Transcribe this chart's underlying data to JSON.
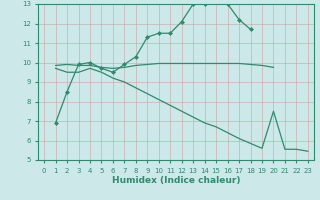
{
  "xlabel": "Humidex (Indice chaleur)",
  "xlim": [
    -0.5,
    23.5
  ],
  "ylim": [
    5,
    13
  ],
  "yticks": [
    5,
    6,
    7,
    8,
    9,
    10,
    11,
    12,
    13
  ],
  "xticks": [
    0,
    1,
    2,
    3,
    4,
    5,
    6,
    7,
    8,
    9,
    10,
    11,
    12,
    13,
    14,
    15,
    16,
    17,
    18,
    19,
    20,
    21,
    22,
    23
  ],
  "line_color": "#2e8b6e",
  "bg_color": "#cce8e8",
  "grid_color": "#b0d4d4",
  "line1_x": [
    1,
    2,
    3,
    4,
    5,
    6,
    7,
    8,
    9,
    10,
    11,
    12,
    13,
    14,
    15,
    16,
    17,
    18
  ],
  "line1_y": [
    6.9,
    8.5,
    9.9,
    10.0,
    9.7,
    9.5,
    9.9,
    10.3,
    11.3,
    11.5,
    11.5,
    12.1,
    13.0,
    13.0,
    13.3,
    13.0,
    12.2,
    11.7
  ],
  "line2_x": [
    1,
    2,
    3,
    4,
    5,
    6,
    7,
    8,
    9,
    10,
    11,
    12,
    13,
    14,
    15,
    16,
    17,
    18,
    19,
    20
  ],
  "line2_y": [
    9.85,
    9.9,
    9.85,
    9.85,
    9.75,
    9.7,
    9.75,
    9.85,
    9.9,
    9.95,
    9.95,
    9.95,
    9.95,
    9.95,
    9.95,
    9.95,
    9.95,
    9.9,
    9.85,
    9.75
  ],
  "line3_x": [
    1,
    2,
    3,
    4,
    5,
    6,
    7,
    8,
    9,
    10,
    11,
    12,
    13,
    14,
    15,
    16,
    17,
    18,
    19,
    20,
    21,
    22,
    23
  ],
  "line3_y": [
    9.7,
    9.5,
    9.5,
    9.7,
    9.5,
    9.2,
    9.0,
    8.7,
    8.4,
    8.1,
    7.8,
    7.5,
    7.2,
    6.9,
    6.7,
    6.4,
    6.1,
    5.85,
    5.6,
    7.5,
    5.55,
    5.55,
    5.45
  ]
}
